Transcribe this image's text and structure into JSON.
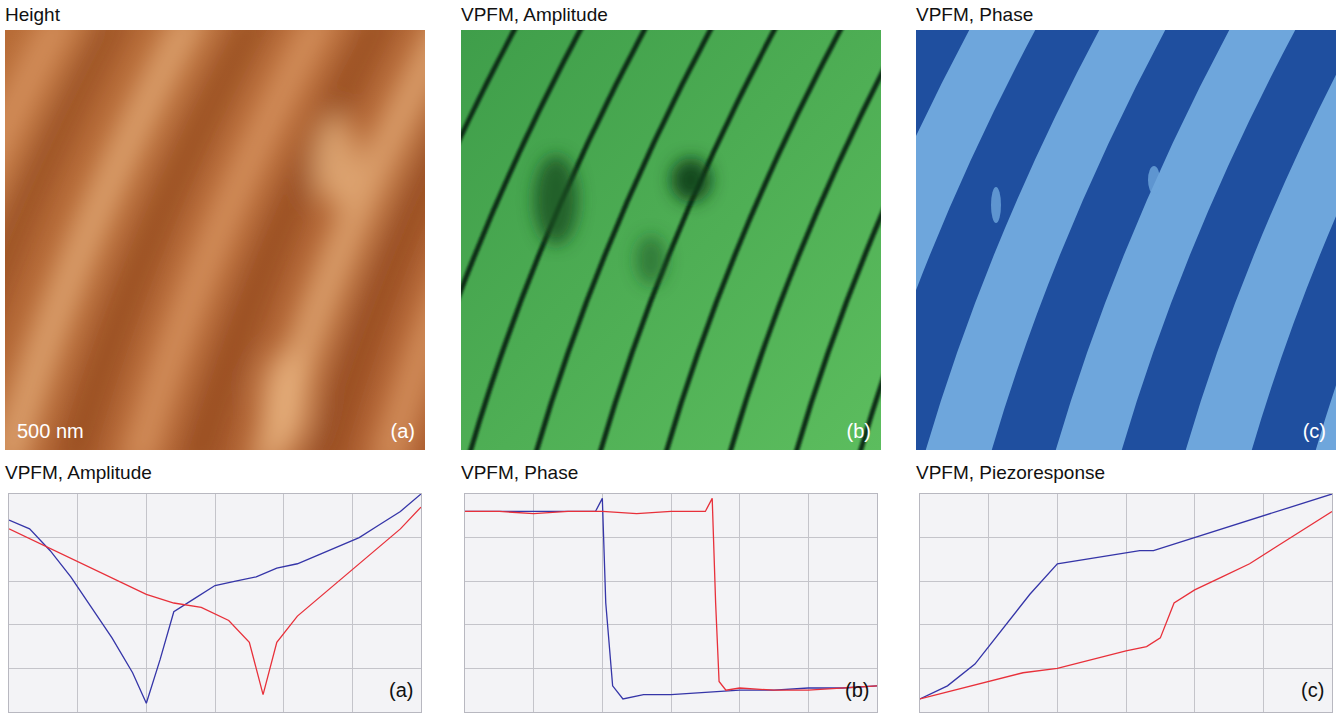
{
  "panels": [
    {
      "title": "Height",
      "letter": "(a)",
      "scale_label": "500 nm"
    },
    {
      "title": "VPFM, Amplitude",
      "letter": "(b)"
    },
    {
      "title": "VPFM, Phase",
      "letter": "(c)"
    }
  ],
  "chart_data": [
    {
      "type": "line",
      "title": "VPFM, Amplitude",
      "annotation": "(a)",
      "xlim": [
        0,
        6
      ],
      "xticks": [
        0,
        1,
        2,
        3,
        4,
        5,
        6
      ],
      "ylim": [
        0,
        5
      ],
      "yticks": [
        0,
        1,
        2,
        3,
        4,
        5
      ],
      "grid": true,
      "tick_labels": false,
      "series": [
        {
          "color": "#3535a8",
          "x": [
            0,
            0.3,
            0.6,
            0.9,
            1.2,
            1.5,
            1.8,
            2.0,
            2.2,
            2.4,
            2.7,
            3.0,
            3.3,
            3.6,
            3.9,
            4.2,
            4.5,
            4.8,
            5.1,
            5.4,
            5.7,
            6.0
          ],
          "values": [
            4.4,
            4.2,
            3.7,
            3.1,
            2.4,
            1.7,
            0.9,
            0.2,
            1.2,
            2.3,
            2.6,
            2.9,
            3.0,
            3.1,
            3.3,
            3.4,
            3.6,
            3.8,
            4.0,
            4.3,
            4.6,
            5.0
          ]
        },
        {
          "color": "#e8303a",
          "x": [
            0,
            0.4,
            0.8,
            1.2,
            1.6,
            2.0,
            2.4,
            2.8,
            3.2,
            3.5,
            3.7,
            3.9,
            4.2,
            4.5,
            4.8,
            5.1,
            5.4,
            5.7,
            6.0
          ],
          "values": [
            4.2,
            3.9,
            3.6,
            3.3,
            3.0,
            2.7,
            2.5,
            2.4,
            2.1,
            1.6,
            0.4,
            1.6,
            2.2,
            2.6,
            3.0,
            3.4,
            3.8,
            4.2,
            4.7
          ]
        }
      ]
    },
    {
      "type": "line",
      "title": "VPFM, Phase",
      "annotation": "(b)",
      "xlim": [
        0,
        6
      ],
      "xticks": [
        0,
        1,
        2,
        3,
        4,
        5,
        6
      ],
      "ylim": [
        0,
        5
      ],
      "yticks": [
        0,
        1,
        2,
        3,
        4,
        5
      ],
      "grid": true,
      "tick_labels": false,
      "series": [
        {
          "color": "#3535a8",
          "x": [
            0,
            0.5,
            1.0,
            1.5,
            1.9,
            2.0,
            2.05,
            2.15,
            2.3,
            2.6,
            3.0,
            3.5,
            4.0,
            4.5,
            5.0,
            5.5,
            6.0
          ],
          "values": [
            4.6,
            4.6,
            4.6,
            4.6,
            4.6,
            4.9,
            2.5,
            0.6,
            0.3,
            0.4,
            0.4,
            0.45,
            0.5,
            0.5,
            0.55,
            0.55,
            0.6
          ]
        },
        {
          "color": "#e8303a",
          "x": [
            0,
            0.5,
            1.0,
            1.5,
            2.0,
            2.5,
            3.0,
            3.5,
            3.6,
            3.65,
            3.7,
            3.8,
            4.0,
            4.5,
            5.0,
            5.5,
            6.0
          ],
          "values": [
            4.6,
            4.6,
            4.55,
            4.6,
            4.6,
            4.55,
            4.6,
            4.6,
            4.9,
            2.5,
            0.7,
            0.5,
            0.55,
            0.5,
            0.5,
            0.55,
            0.6
          ]
        }
      ]
    },
    {
      "type": "line",
      "title": "VPFM, Piezoresponse",
      "annotation": "(c)",
      "xlim": [
        0,
        6
      ],
      "xticks": [
        0,
        1,
        2,
        3,
        4,
        5,
        6
      ],
      "ylim": [
        0,
        5
      ],
      "yticks": [
        0,
        1,
        2,
        3,
        4,
        5
      ],
      "grid": true,
      "tick_labels": false,
      "series": [
        {
          "color": "#3535a8",
          "x": [
            0,
            0.4,
            0.8,
            1.2,
            1.6,
            2.0,
            2.4,
            2.8,
            3.2,
            3.4,
            3.6,
            4.0,
            4.4,
            4.8,
            5.2,
            5.6,
            6.0
          ],
          "values": [
            0.3,
            0.6,
            1.1,
            1.9,
            2.7,
            3.4,
            3.5,
            3.6,
            3.7,
            3.7,
            3.8,
            4.0,
            4.2,
            4.4,
            4.6,
            4.8,
            5.0
          ]
        },
        {
          "color": "#e8303a",
          "x": [
            0,
            0.5,
            1.0,
            1.5,
            2.0,
            2.5,
            3.0,
            3.3,
            3.5,
            3.7,
            4.0,
            4.4,
            4.8,
            5.2,
            5.6,
            6.0
          ],
          "values": [
            0.3,
            0.5,
            0.7,
            0.9,
            1.0,
            1.2,
            1.4,
            1.5,
            1.7,
            2.5,
            2.8,
            3.1,
            3.4,
            3.8,
            4.2,
            4.6
          ]
        }
      ]
    }
  ]
}
